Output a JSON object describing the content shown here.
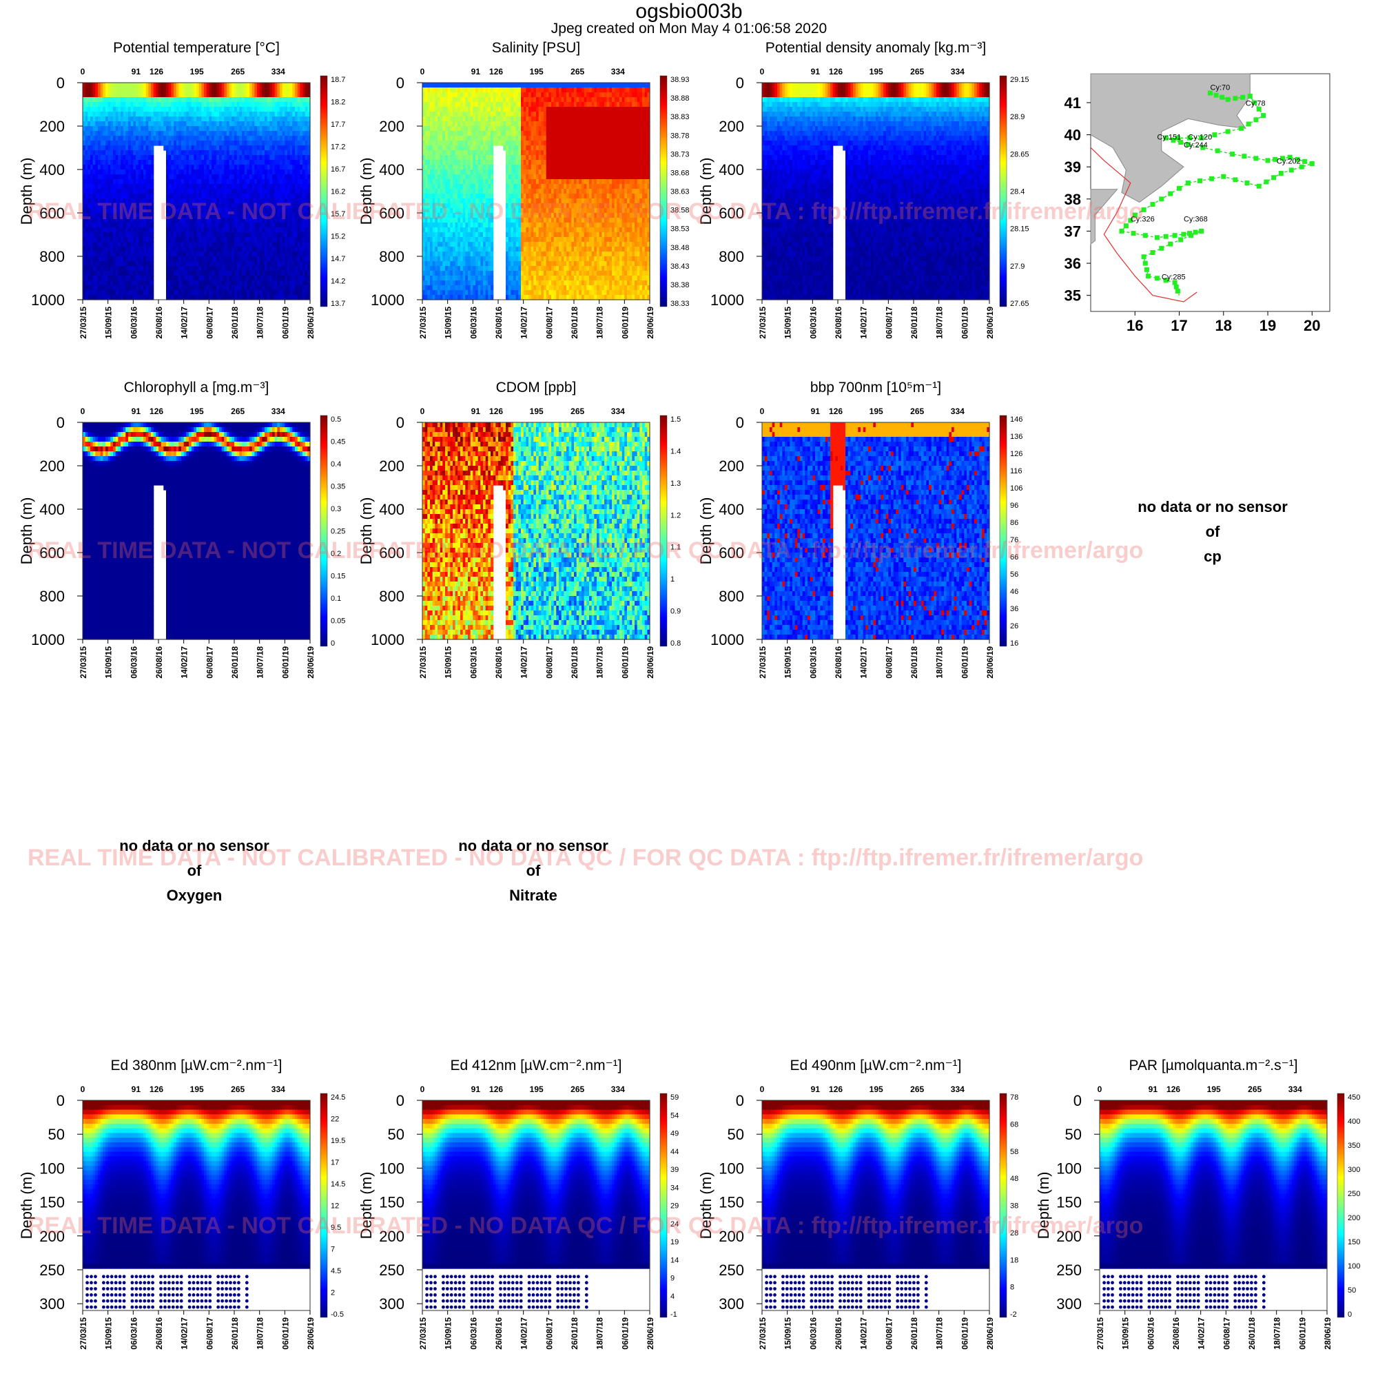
{
  "header": {
    "title": "ogsbio003b",
    "subtitle": "Jpeg created on  Mon May  4 01:06:58 2020"
  },
  "watermark": "REAL TIME DATA - NOT CALIBRATED - NO DATA QC   /  FOR QC DATA : ftp://ftp.ifremer.fr/ifremer/argo",
  "no_data": [
    {
      "line1": "no data or no sensor",
      "line2": "of",
      "line3": "cp"
    },
    {
      "line1": "no data or no sensor",
      "line2": "of",
      "line3": "Oxygen"
    },
    {
      "line1": "no data or no sensor",
      "line2": "of",
      "line3": "Nitrate"
    }
  ],
  "shared_axes": {
    "ylabel": "Depth (m)",
    "cycle_ticks": [
      "0",
      "91",
      "126",
      "195",
      "265",
      "334"
    ],
    "cycle_tick_values": [
      0,
      91,
      126,
      195,
      265,
      334
    ],
    "date_ticks": [
      "27/03/15",
      "15/09/15",
      "06/03/16",
      "26/08/16",
      "14/02/17",
      "06/08/17",
      "26/01/18",
      "18/07/18",
      "06/01/19",
      "28/06/19"
    ],
    "colorscale": [
      "#00007f",
      "#0000ff",
      "#007fff",
      "#00ffff",
      "#7fff7f",
      "#ffff00",
      "#ff7f00",
      "#ff0000",
      "#7f0000"
    ]
  },
  "chart_data": [
    {
      "type": "heatmap",
      "title": "Potential temperature [°C]",
      "ylabel": "Depth (m)",
      "ylim": [
        1000,
        0
      ],
      "yticks": [
        "0",
        "200",
        "400",
        "600",
        "800",
        "1000"
      ],
      "colorbar": [
        "18.7",
        "18.2",
        "17.7",
        "17.2",
        "16.7",
        "16.2",
        "15.7",
        "15.2",
        "14.7",
        "14.2",
        "13.7"
      ],
      "pattern": "temperature"
    },
    {
      "type": "heatmap",
      "title": "Salinity [PSU]",
      "ylabel": "Depth (m)",
      "ylim": [
        1000,
        0
      ],
      "yticks": [
        "0",
        "200",
        "400",
        "600",
        "800",
        "1000"
      ],
      "colorbar": [
        "38.93",
        "38.88",
        "38.83",
        "38.78",
        "38.73",
        "38.68",
        "38.63",
        "38.58",
        "38.53",
        "38.48",
        "38.43",
        "38.38",
        "38.33"
      ],
      "pattern": "salinity"
    },
    {
      "type": "heatmap",
      "title": "Potential density anomaly [kg.m⁻³]",
      "ylabel": "Depth (m)",
      "ylim": [
        1000,
        0
      ],
      "yticks": [
        "0",
        "200",
        "400",
        "600",
        "800",
        "1000"
      ],
      "colorbar": [
        "29.15",
        "28.9",
        "28.65",
        "28.4",
        "28.15",
        "27.9",
        "27.65"
      ],
      "pattern": "density"
    },
    {
      "type": "scatter",
      "title": "",
      "pattern": "map",
      "xticks": [
        "16",
        "17",
        "18",
        "19",
        "20"
      ],
      "yticks": [
        "41",
        "40",
        "39",
        "38",
        "37",
        "36",
        "35"
      ],
      "xlim": [
        15,
        20.4
      ],
      "ylim": [
        34.5,
        41.9
      ],
      "labels": [
        "Cy:70",
        "Cy:78",
        "Cy:151",
        "Cy:120",
        "Cy:244",
        "Cy:202",
        "Cy:326",
        "Cy:368",
        "Cy:285"
      ]
    },
    {
      "type": "heatmap",
      "title": "Chlorophyll a [mg.m⁻³]",
      "ylabel": "Depth (m)",
      "ylim": [
        1000,
        0
      ],
      "yticks": [
        "0",
        "200",
        "400",
        "600",
        "800",
        "1000"
      ],
      "colorbar": [
        "0.5",
        "0.45",
        "0.4",
        "0.35",
        "0.3",
        "0.25",
        "0.2",
        "0.15",
        "0.1",
        "0.05",
        "0"
      ],
      "pattern": "chl"
    },
    {
      "type": "heatmap",
      "title": "CDOM  [ppb]",
      "ylabel": "Depth (m)",
      "ylim": [
        1000,
        0
      ],
      "yticks": [
        "0",
        "200",
        "400",
        "600",
        "800",
        "1000"
      ],
      "colorbar": [
        "1.5",
        "1.4",
        "1.3",
        "1.2",
        "1.1",
        "1",
        "0.9",
        "0.8"
      ],
      "pattern": "cdom"
    },
    {
      "type": "heatmap",
      "title": "bbp 700nm [10⁵m⁻¹]",
      "ylabel": "Depth (m)",
      "ylim": [
        1000,
        0
      ],
      "yticks": [
        "0",
        "200",
        "400",
        "600",
        "800",
        "1000"
      ],
      "colorbar": [
        "146",
        "136",
        "126",
        "116",
        "106",
        "96",
        "86",
        "76",
        "66",
        "56",
        "46",
        "36",
        "26",
        "16"
      ],
      "pattern": "bbp"
    },
    {
      "type": "heatmap",
      "title": "Ed 380nm [µW.cm⁻².nm⁻¹]",
      "ylabel": "Depth (m)",
      "ylim": [
        310,
        0
      ],
      "yticks": [
        "0",
        "50",
        "100",
        "150",
        "200",
        "250",
        "300"
      ],
      "colorbar": [
        "24.5",
        "22",
        "19.5",
        "17",
        "14.5",
        "12",
        "9.5",
        "7",
        "4.5",
        "2",
        "-0.5"
      ],
      "pattern": "light"
    },
    {
      "type": "heatmap",
      "title": "Ed 412nm [µW.cm⁻².nm⁻¹]",
      "ylabel": "Depth (m)",
      "ylim": [
        310,
        0
      ],
      "yticks": [
        "0",
        "50",
        "100",
        "150",
        "200",
        "250",
        "300"
      ],
      "colorbar": [
        "59",
        "54",
        "49",
        "44",
        "39",
        "34",
        "29",
        "24",
        "19",
        "14",
        "9",
        "4",
        "-1"
      ],
      "pattern": "light"
    },
    {
      "type": "heatmap",
      "title": "Ed 490nm [µW.cm⁻².nm⁻¹]",
      "ylabel": "Depth (m)",
      "ylim": [
        310,
        0
      ],
      "yticks": [
        "0",
        "50",
        "100",
        "150",
        "200",
        "250",
        "300"
      ],
      "colorbar": [
        "78",
        "68",
        "58",
        "48",
        "38",
        "28",
        "18",
        "8",
        "-2"
      ],
      "pattern": "light"
    },
    {
      "type": "heatmap",
      "title": "PAR [µmolquanta.m⁻².s⁻¹]",
      "ylabel": "Depth (m)",
      "ylim": [
        310,
        0
      ],
      "yticks": [
        "0",
        "50",
        "100",
        "150",
        "200",
        "250",
        "300"
      ],
      "colorbar": [
        "450",
        "400",
        "350",
        "300",
        "250",
        "200",
        "150",
        "100",
        "50",
        "0"
      ],
      "pattern": "light"
    }
  ]
}
